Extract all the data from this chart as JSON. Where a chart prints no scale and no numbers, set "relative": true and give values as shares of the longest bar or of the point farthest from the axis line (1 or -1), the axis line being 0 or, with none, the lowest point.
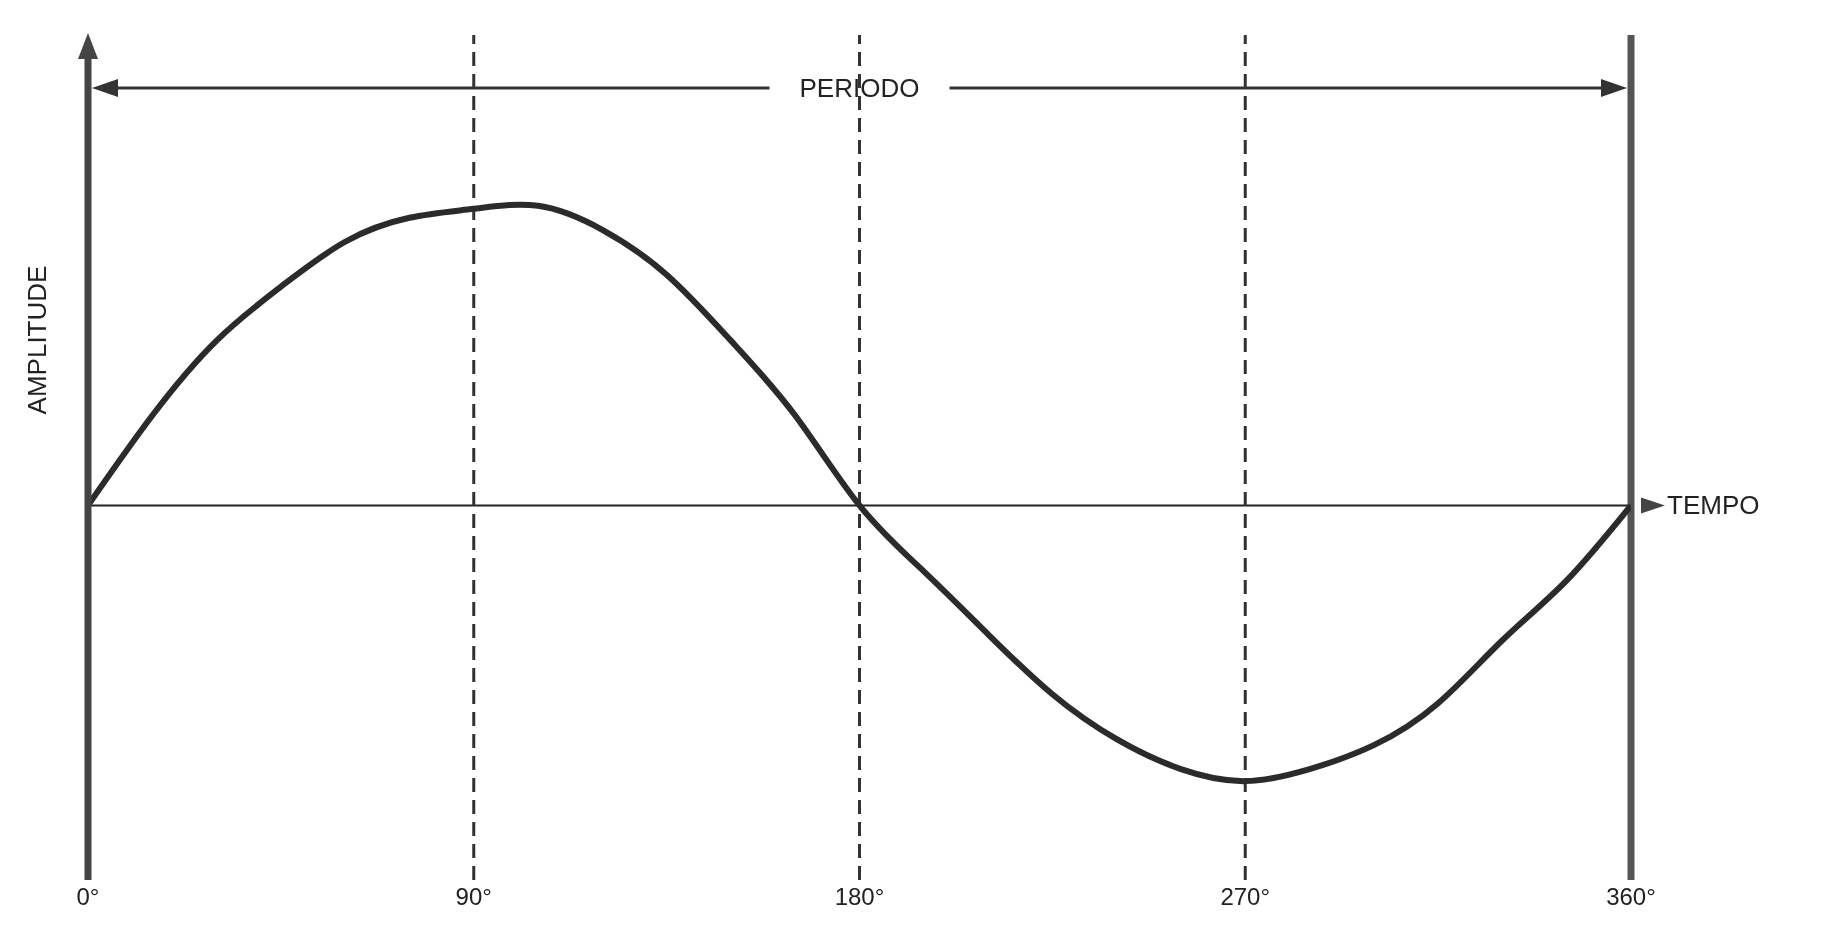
{
  "chart_data": {
    "type": "line",
    "relative": true,
    "xlabel": "TEMPO",
    "ylabel": "AMPLITUDE",
    "annotations": [
      "PERIODO"
    ],
    "xlim": [
      0,
      360
    ],
    "xticks": [
      {
        "value": 0,
        "label": "0°"
      },
      {
        "value": 90,
        "label": "90°"
      },
      {
        "value": 180,
        "label": "180°"
      },
      {
        "value": 270,
        "label": "270°"
      },
      {
        "value": 360,
        "label": "360°"
      }
    ],
    "series": [
      {
        "color": "#2b2b2b",
        "x": [
          0,
          15,
          30,
          45,
          60,
          75,
          90,
          105,
          120,
          135,
          150,
          165,
          180,
          195,
          210,
          225,
          240,
          255,
          270,
          285,
          300,
          315,
          330,
          345,
          360
        ],
        "values": [
          0,
          0.3,
          0.55,
          0.73,
          0.88,
          0.96,
          0.99,
          1,
          0.92,
          0.77,
          0.55,
          0.3,
          0,
          -0.22,
          -0.43,
          -0.63,
          -0.78,
          -0.88,
          -0.92,
          -0.88,
          -0.8,
          -0.66,
          -0.45,
          -0.25,
          0
        ]
      }
    ],
    "ref_lines": [
      {
        "axis": "x",
        "value": 90,
        "line_style": "dashed",
        "color": "#333333"
      },
      {
        "axis": "x",
        "value": 180,
        "line_style": "dashed",
        "color": "#333333"
      },
      {
        "axis": "x",
        "value": 270,
        "line_style": "dashed",
        "color": "#333333"
      },
      {
        "axis": "x",
        "value": 360,
        "line_style": "solid",
        "color": "#555555"
      }
    ],
    "grid": false,
    "legend": false,
    "marker": "none",
    "line_style": "solid"
  }
}
